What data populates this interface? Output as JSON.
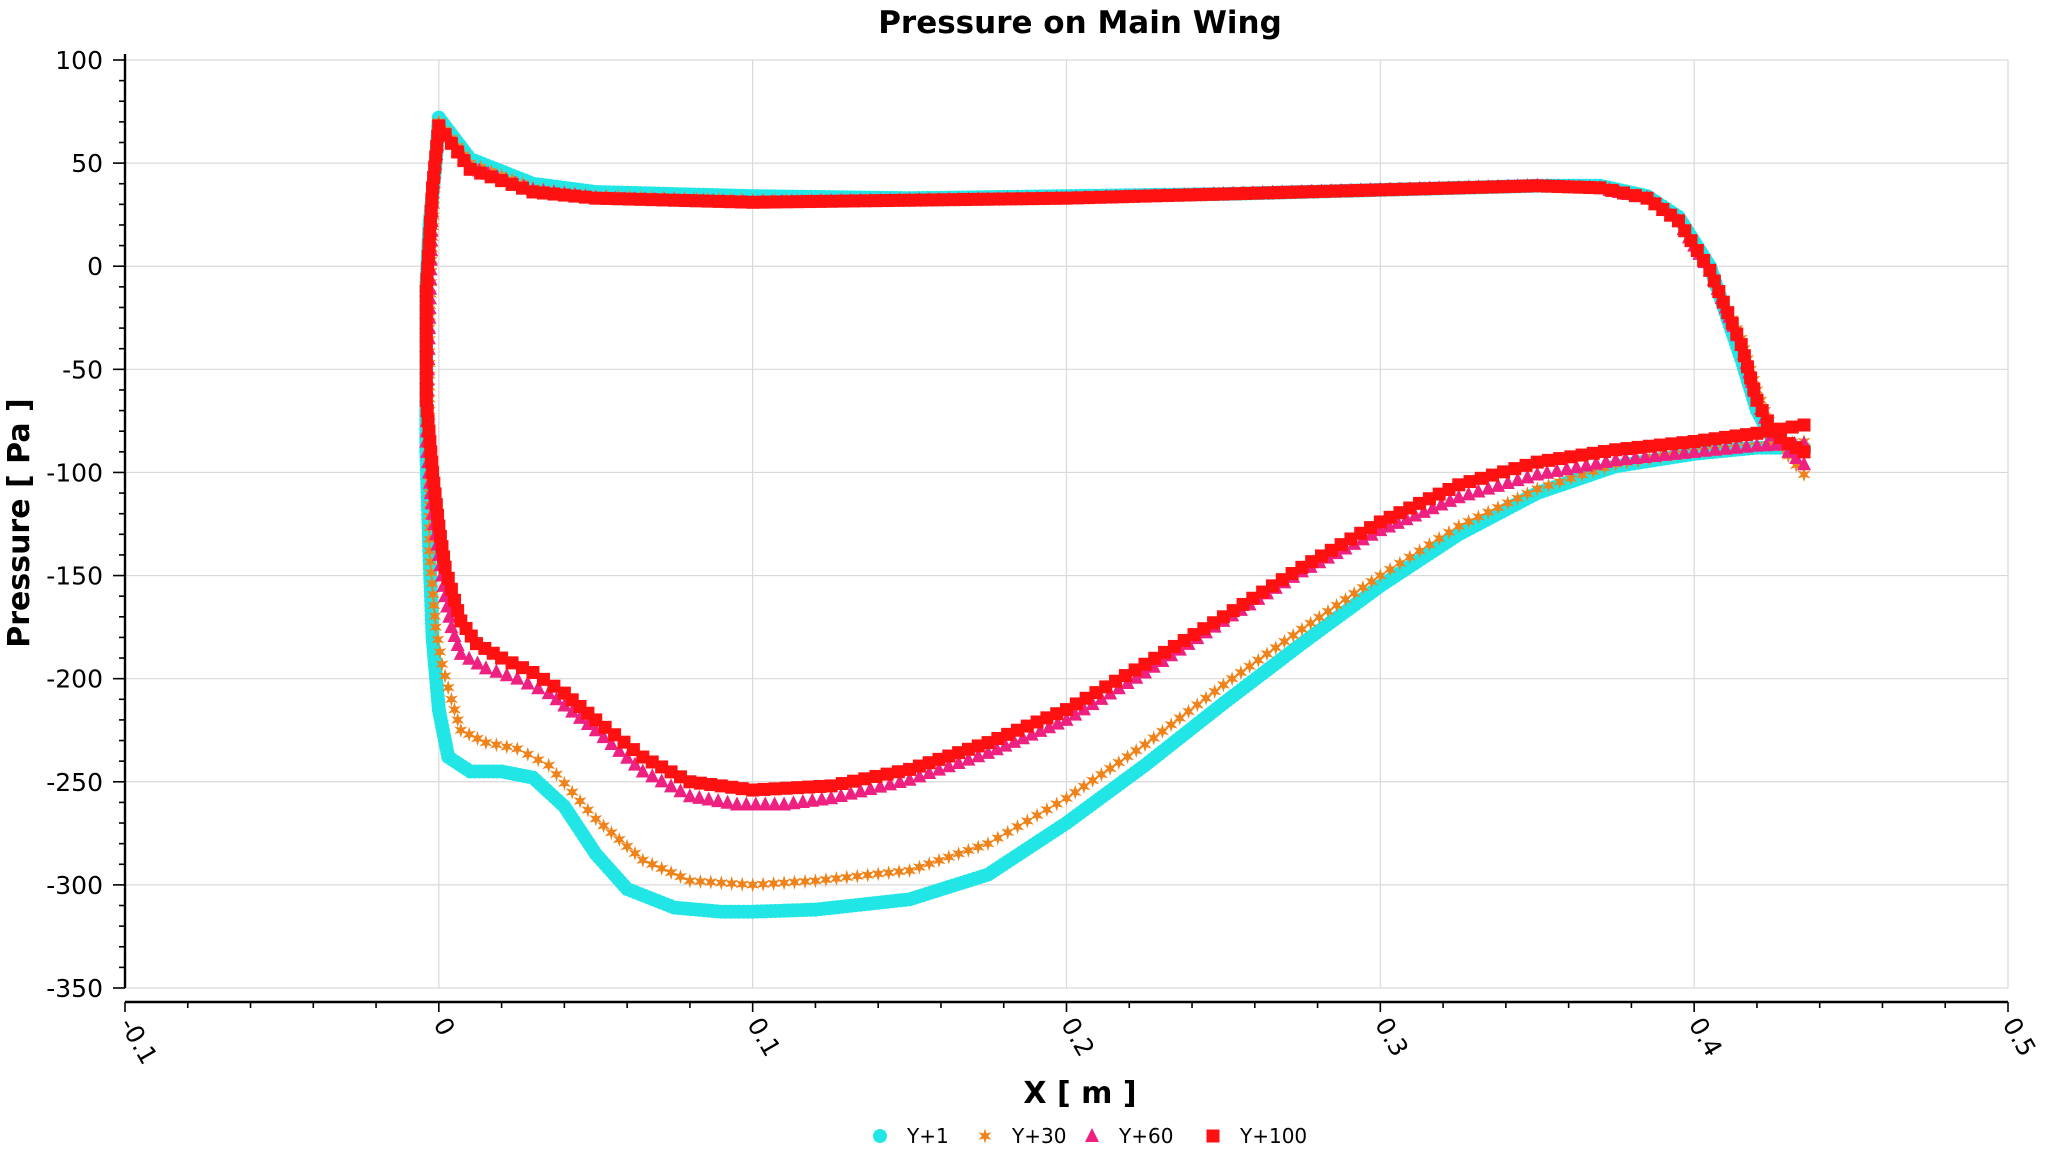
{
  "chart_data": {
    "type": "scatter",
    "title": "Pressure on Main Wing",
    "xlabel": "X [ m ]",
    "ylabel": "Pressure [ Pa ]",
    "xlim": [
      -0.1,
      0.5
    ],
    "ylim": [
      -350,
      100
    ],
    "x_ticks": [
      "-0.1",
      "0",
      "0.1",
      "0.2",
      "0.3",
      "0.4",
      "0.5"
    ],
    "y_ticks": [
      "100",
      "50",
      "0",
      "-50",
      "-100",
      "-150",
      "-200",
      "-250",
      "-300",
      "-350"
    ],
    "grid": true,
    "legend_position": "bottom-center",
    "series": [
      {
        "name": "Y+1",
        "color": "#22e6e6",
        "marker": "circle",
        "upper": [
          [
            0.0,
            72
          ],
          [
            0.01,
            52
          ],
          [
            0.03,
            40
          ],
          [
            0.05,
            36
          ],
          [
            0.1,
            34
          ],
          [
            0.15,
            33
          ],
          [
            0.2,
            34
          ],
          [
            0.25,
            35
          ],
          [
            0.3,
            37
          ],
          [
            0.35,
            39
          ],
          [
            0.37,
            39
          ],
          [
            0.385,
            34
          ],
          [
            0.395,
            24
          ],
          [
            0.405,
            0
          ],
          [
            0.415,
            -45
          ],
          [
            0.42,
            -70
          ],
          [
            0.425,
            -84
          ],
          [
            0.43,
            -88
          ],
          [
            0.435,
            -90
          ]
        ],
        "lower": [
          [
            0.0,
            72
          ],
          [
            -0.001,
            50
          ],
          [
            -0.003,
            20
          ],
          [
            -0.004,
            -10
          ],
          [
            -0.004,
            -50
          ],
          [
            -0.004,
            -90
          ],
          [
            -0.003,
            -140
          ],
          [
            -0.002,
            -180
          ],
          [
            0.0,
            -215
          ],
          [
            0.003,
            -238
          ],
          [
            0.01,
            -245
          ],
          [
            0.02,
            -245
          ],
          [
            0.03,
            -248
          ],
          [
            0.04,
            -262
          ],
          [
            0.05,
            -285
          ],
          [
            0.06,
            -302
          ],
          [
            0.075,
            -311
          ],
          [
            0.09,
            -313
          ],
          [
            0.1,
            -313
          ],
          [
            0.12,
            -312
          ],
          [
            0.15,
            -307
          ],
          [
            0.175,
            -295
          ],
          [
            0.2,
            -270
          ],
          [
            0.225,
            -242
          ],
          [
            0.25,
            -212
          ],
          [
            0.275,
            -183
          ],
          [
            0.3,
            -155
          ],
          [
            0.325,
            -130
          ],
          [
            0.35,
            -110
          ],
          [
            0.375,
            -97
          ],
          [
            0.4,
            -91
          ],
          [
            0.42,
            -88
          ],
          [
            0.435,
            -88
          ]
        ]
      },
      {
        "name": "Y+30",
        "color": "#f0821a",
        "marker": "star",
        "upper": [
          [
            0.0,
            70
          ],
          [
            0.01,
            50
          ],
          [
            0.03,
            38
          ],
          [
            0.05,
            34
          ],
          [
            0.1,
            32
          ],
          [
            0.15,
            32
          ],
          [
            0.2,
            33
          ],
          [
            0.25,
            35
          ],
          [
            0.3,
            37
          ],
          [
            0.35,
            39
          ],
          [
            0.37,
            38
          ],
          [
            0.385,
            33
          ],
          [
            0.395,
            22
          ],
          [
            0.405,
            -2
          ],
          [
            0.415,
            -35
          ],
          [
            0.42,
            -60
          ],
          [
            0.425,
            -80
          ],
          [
            0.43,
            -92
          ],
          [
            0.435,
            -101
          ]
        ],
        "lower": [
          [
            0.0,
            70
          ],
          [
            -0.001,
            50
          ],
          [
            -0.002,
            14
          ],
          [
            -0.003,
            -30
          ],
          [
            -0.003,
            -70
          ],
          [
            -0.003,
            -110
          ],
          [
            -0.003,
            -138
          ],
          [
            -0.001,
            -175
          ],
          [
            0.001,
            -193
          ],
          [
            0.004,
            -210
          ],
          [
            0.007,
            -225
          ],
          [
            0.015,
            -231
          ],
          [
            0.025,
            -234
          ],
          [
            0.035,
            -242
          ],
          [
            0.05,
            -268
          ],
          [
            0.065,
            -288
          ],
          [
            0.08,
            -298
          ],
          [
            0.1,
            -300
          ],
          [
            0.12,
            -298
          ],
          [
            0.15,
            -293
          ],
          [
            0.175,
            -280
          ],
          [
            0.2,
            -258
          ],
          [
            0.225,
            -232
          ],
          [
            0.25,
            -203
          ],
          [
            0.275,
            -176
          ],
          [
            0.3,
            -150
          ],
          [
            0.325,
            -126
          ],
          [
            0.35,
            -108
          ],
          [
            0.375,
            -96
          ],
          [
            0.4,
            -90
          ],
          [
            0.42,
            -87
          ],
          [
            0.435,
            -85
          ]
        ]
      },
      {
        "name": "Y+60",
        "color": "#ee2080",
        "marker": "triangle",
        "upper": [
          [
            0.0,
            68
          ],
          [
            0.01,
            48
          ],
          [
            0.03,
            37
          ],
          [
            0.05,
            33
          ],
          [
            0.1,
            31
          ],
          [
            0.15,
            32
          ],
          [
            0.2,
            33
          ],
          [
            0.25,
            35
          ],
          [
            0.3,
            37
          ],
          [
            0.35,
            39
          ],
          [
            0.37,
            38
          ],
          [
            0.385,
            33
          ],
          [
            0.395,
            22
          ],
          [
            0.405,
            -2
          ],
          [
            0.415,
            -38
          ],
          [
            0.42,
            -65
          ],
          [
            0.425,
            -82
          ],
          [
            0.43,
            -90
          ],
          [
            0.435,
            -96
          ]
        ],
        "lower": [
          [
            0.0,
            68
          ],
          [
            -0.002,
            36
          ],
          [
            -0.003,
            -25
          ],
          [
            -0.004,
            -85
          ],
          [
            -0.002,
            -120
          ],
          [
            0.002,
            -160
          ],
          [
            0.004,
            -175
          ],
          [
            0.007,
            -188
          ],
          [
            0.015,
            -195
          ],
          [
            0.025,
            -200
          ],
          [
            0.035,
            -207
          ],
          [
            0.05,
            -225
          ],
          [
            0.065,
            -245
          ],
          [
            0.08,
            -257
          ],
          [
            0.095,
            -261
          ],
          [
            0.11,
            -261
          ],
          [
            0.125,
            -258
          ],
          [
            0.15,
            -249
          ],
          [
            0.175,
            -236
          ],
          [
            0.2,
            -220
          ],
          [
            0.225,
            -197
          ],
          [
            0.25,
            -172
          ],
          [
            0.275,
            -148
          ],
          [
            0.3,
            -128
          ],
          [
            0.325,
            -112
          ],
          [
            0.35,
            -101
          ],
          [
            0.375,
            -94
          ],
          [
            0.4,
            -90
          ],
          [
            0.42,
            -87
          ],
          [
            0.435,
            -86
          ]
        ]
      },
      {
        "name": "Y+100",
        "color": "#ff1111",
        "marker": "square",
        "upper": [
          [
            0.0,
            68
          ],
          [
            0.01,
            47
          ],
          [
            0.03,
            36
          ],
          [
            0.05,
            33
          ],
          [
            0.1,
            31
          ],
          [
            0.15,
            32
          ],
          [
            0.2,
            33
          ],
          [
            0.25,
            35
          ],
          [
            0.3,
            37
          ],
          [
            0.35,
            39
          ],
          [
            0.37,
            38
          ],
          [
            0.385,
            33
          ],
          [
            0.395,
            22
          ],
          [
            0.405,
            -2
          ],
          [
            0.415,
            -38
          ],
          [
            0.42,
            -65
          ],
          [
            0.425,
            -80
          ],
          [
            0.43,
            -86
          ],
          [
            0.435,
            -90
          ]
        ],
        "lower": [
          [
            0.0,
            68
          ],
          [
            -0.002,
            38
          ],
          [
            -0.004,
            -12
          ],
          [
            -0.004,
            -65
          ],
          [
            -0.002,
            -100
          ],
          [
            0.0,
            -126
          ],
          [
            0.002,
            -146
          ],
          [
            0.005,
            -162
          ],
          [
            0.007,
            -172
          ],
          [
            0.012,
            -183
          ],
          [
            0.02,
            -190
          ],
          [
            0.03,
            -197
          ],
          [
            0.04,
            -207
          ],
          [
            0.05,
            -220
          ],
          [
            0.065,
            -238
          ],
          [
            0.08,
            -250
          ],
          [
            0.1,
            -254
          ],
          [
            0.125,
            -252
          ],
          [
            0.15,
            -244
          ],
          [
            0.175,
            -231
          ],
          [
            0.2,
            -215
          ],
          [
            0.225,
            -193
          ],
          [
            0.25,
            -170
          ],
          [
            0.275,
            -146
          ],
          [
            0.3,
            -124
          ],
          [
            0.325,
            -106
          ],
          [
            0.35,
            -95
          ],
          [
            0.375,
            -89
          ],
          [
            0.4,
            -85
          ],
          [
            0.42,
            -81
          ],
          [
            0.435,
            -77
          ]
        ]
      }
    ]
  }
}
